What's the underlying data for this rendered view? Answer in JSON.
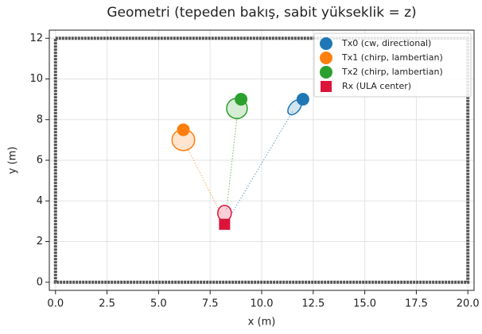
{
  "chart_data": {
    "type": "scatter",
    "title": "Geometri (tepeden bakış, sabit yükseklik = z)",
    "xlabel": "x (m)",
    "ylabel": "y (m)",
    "xlim": [
      -0.3,
      20.3
    ],
    "ylim": [
      -0.4,
      12.4
    ],
    "xticks": [
      {
        "value": 0,
        "label": "0.0"
      },
      {
        "value": 2.5,
        "label": "2.5"
      },
      {
        "value": 5,
        "label": "5.0"
      },
      {
        "value": 7.5,
        "label": "7.5"
      },
      {
        "value": 10,
        "label": "10.0"
      },
      {
        "value": 12.5,
        "label": "12.5"
      },
      {
        "value": 15,
        "label": "15.0"
      },
      {
        "value": 17.5,
        "label": "17.5"
      },
      {
        "value": 20,
        "label": "20.0"
      }
    ],
    "yticks": [
      0,
      2,
      4,
      6,
      8,
      10,
      12
    ],
    "grid": true,
    "legend": "upper right",
    "room": {
      "x": [
        0,
        20
      ],
      "y": [
        0,
        12
      ]
    },
    "series": [
      {
        "name": "Tx0 (cw, directional)",
        "color": "#1f77b4",
        "marker": "circle",
        "x": [
          12
        ],
        "y": [
          9
        ]
      },
      {
        "name": "Tx1 (chirp, lambertian)",
        "color": "#ff7f0e",
        "marker": "circle",
        "x": [
          6.2
        ],
        "y": [
          7.5
        ]
      },
      {
        "name": "Tx2 (chirp, lambertian)",
        "color": "#2ca02c",
        "marker": "circle",
        "x": [
          9
        ],
        "y": [
          9
        ]
      },
      {
        "name": "Rx (ULA center)",
        "color": "#dc143c",
        "marker": "square",
        "x": [
          8.2
        ],
        "y": [
          2.85
        ]
      }
    ],
    "shapes": [
      {
        "x": 11.6,
        "y": 8.6,
        "rx": 0.42,
        "ry": 0.25,
        "angle": -50,
        "color": "#1f77b4"
      },
      {
        "x": 6.2,
        "y": 7.0,
        "rx": 0.55,
        "ry": 0.52,
        "angle": 0,
        "color": "#ff7f0e"
      },
      {
        "x": 8.8,
        "y": 8.55,
        "rx": 0.5,
        "ry": 0.5,
        "angle": 0,
        "color": "#2ca02c"
      },
      {
        "x": 8.2,
        "y": 3.4,
        "rx": 0.33,
        "ry": 0.38,
        "angle": 0,
        "color": "#dc143c"
      }
    ],
    "lines": [
      {
        "x": [
          8.5,
          11.5
        ],
        "y": [
          3.3,
          8.4
        ],
        "color": "#1f77b4"
      },
      {
        "x": [
          8.0,
          6.4
        ],
        "y": [
          3.4,
          6.6
        ],
        "color": "#ff7f0e"
      },
      {
        "x": [
          8.3,
          8.8
        ],
        "y": [
          3.6,
          8.1
        ],
        "color": "#2ca02c"
      }
    ]
  }
}
